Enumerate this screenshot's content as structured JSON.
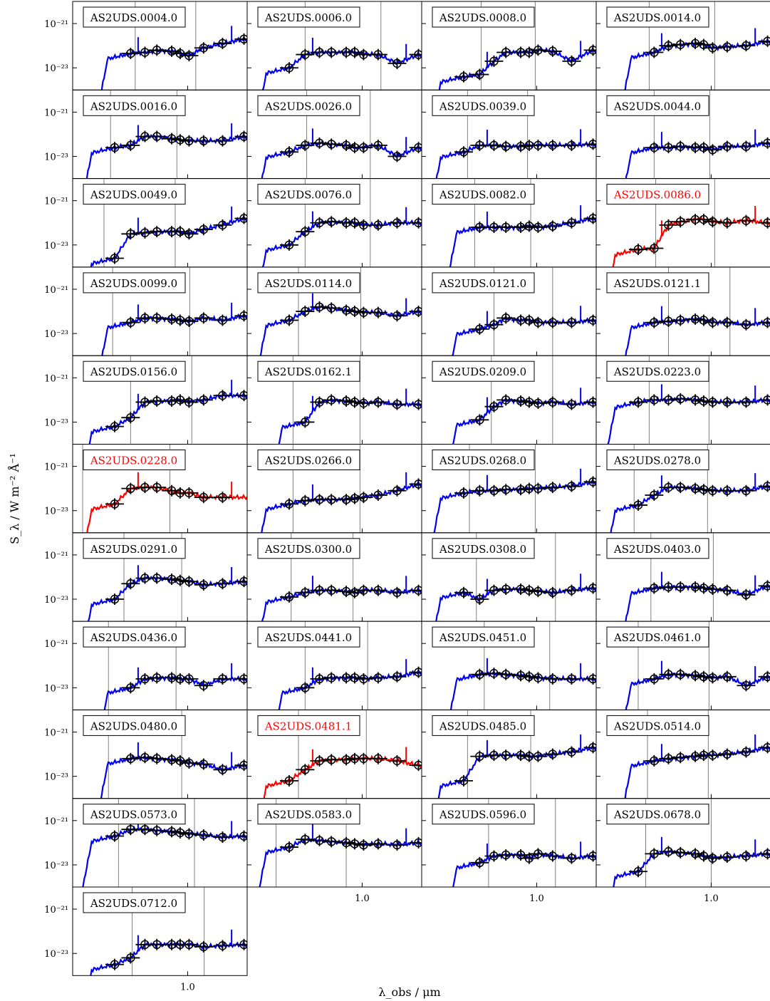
{
  "figure": {
    "ylabel": "S_λ / W m⁻² Å⁻¹",
    "xlabel": "λ_obs / μm"
  },
  "chart_data": {
    "type": "scatter",
    "xscale": "log",
    "yscale": "log",
    "xlim": [
      0.2,
      2.3
    ],
    "ylim": [
      1e-24,
      1e-20
    ],
    "x_ticks": [
      1.0
    ],
    "x_tick_labels": [
      "1.0"
    ],
    "y_ticks": [
      1e-21,
      1e-23
    ],
    "y_tick_labels": [
      "10⁻²¹",
      "10⁻²³"
    ],
    "phot_x": [
      0.36,
      0.45,
      0.55,
      0.65,
      0.8,
      0.9,
      1.02,
      1.25,
      1.63,
      2.2
    ],
    "grid": false,
    "legend": "none",
    "colors": {
      "fit_blue": "#0000ee",
      "fit_red": "#ff0000",
      "points": "#000000",
      "lines": "#808080"
    },
    "panels": [
      {
        "name": "AS2UDS.0004.0",
        "label_color": "black",
        "fit_color": "blue",
        "vlines": [
          0.48,
          1.12
        ],
        "phot": [
          null,
          -22.35,
          -22.3,
          -22.2,
          -22.25,
          -22.35,
          -22.45,
          -22.1,
          -21.9,
          -21.7
        ]
      },
      {
        "name": "AS2UDS.0006.0",
        "label_color": "black",
        "fit_color": "blue",
        "vlines": [
          0.45,
          1.3
        ],
        "phot": [
          -23.0,
          -22.4,
          -22.3,
          -22.3,
          -22.3,
          -22.3,
          -22.4,
          -22.4,
          -22.8,
          -22.4
        ]
      },
      {
        "name": "AS2UDS.0008.0",
        "label_color": "black",
        "fit_color": "blue",
        "vlines": [
          0.46,
          0.98
        ],
        "phot": [
          -23.4,
          -23.3,
          -22.7,
          -22.3,
          -22.3,
          -22.3,
          -22.2,
          -22.25,
          -22.7,
          -22.2
        ]
      },
      {
        "name": "AS2UDS.0014.0",
        "label_color": "black",
        "fit_color": "blue",
        "vlines": [
          0.42,
          1.05
        ],
        "phot": [
          null,
          -22.3,
          -22.0,
          -21.95,
          -21.9,
          -21.95,
          -22.1,
          -22.05,
          -22.0,
          -21.8
        ]
      },
      {
        "name": "AS2UDS.0016.0",
        "label_color": "black",
        "fit_color": "blue",
        "vlines": [
          0.34,
          0.86
        ],
        "phot": [
          -22.6,
          -22.5,
          -22.1,
          -22.1,
          -22.2,
          -22.25,
          -22.3,
          -22.3,
          -22.3,
          -22.1
        ]
      },
      {
        "name": "AS2UDS.0026.0",
        "label_color": "black",
        "fit_color": "blue",
        "vlines": [
          0.46,
          1.12
        ],
        "phot": [
          -22.8,
          -22.5,
          -22.4,
          -22.45,
          -22.5,
          -22.6,
          -22.6,
          -22.5,
          -23.0,
          -22.6
        ]
      },
      {
        "name": "AS2UDS.0039.0",
        "label_color": "black",
        "fit_color": "blue",
        "vlines": [
          0.38,
          0.88
        ],
        "phot": [
          -22.8,
          -22.5,
          -22.5,
          -22.55,
          -22.55,
          -22.5,
          -22.5,
          -22.5,
          -22.5,
          -22.45
        ]
      },
      {
        "name": "AS2UDS.0044.0",
        "label_color": "black",
        "fit_color": "blue",
        "vlines": [
          0.45,
          0.98
        ],
        "phot": [
          null,
          -22.6,
          -22.6,
          -22.55,
          -22.6,
          -22.6,
          -22.7,
          -22.55,
          -22.55,
          -22.4
        ]
      },
      {
        "name": "AS2UDS.0049.0",
        "label_color": "black",
        "fit_color": "blue",
        "vlines": [
          0.31,
          0.84
        ],
        "phot": [
          -23.6,
          -22.5,
          -22.45,
          -22.4,
          -22.4,
          -22.4,
          -22.5,
          -22.3,
          -22.1,
          -21.8
        ]
      },
      {
        "name": "AS2UDS.0076.0",
        "label_color": "black",
        "fit_color": "blue",
        "vlines": [
          0.45,
          1.12
        ],
        "phot": [
          -23.0,
          -22.4,
          -22.0,
          -21.95,
          -22.0,
          -22.0,
          -22.1,
          -22.1,
          -22.0,
          -22.0
        ]
      },
      {
        "name": "AS2UDS.0082.0",
        "label_color": "black",
        "fit_color": "blue",
        "vlines": [
          0.42,
          0.92
        ],
        "phot": [
          null,
          -22.2,
          -22.2,
          -22.2,
          -22.2,
          -22.15,
          -22.2,
          -22.15,
          -22.0,
          -21.8
        ]
      },
      {
        "name": "AS2UDS.0086.0",
        "label_color": "red",
        "fit_color": "red",
        "vlines": [
          0.46,
          1.05
        ],
        "phot": [
          -23.2,
          -23.15,
          -22.1,
          -21.95,
          -21.85,
          -21.85,
          -21.95,
          -22.0,
          -21.9,
          -22.0
        ]
      },
      {
        "name": "AS2UDS.0099.0",
        "label_color": "black",
        "fit_color": "blue",
        "vlines": [
          0.35,
          1.03
        ],
        "phot": [
          null,
          -22.5,
          -22.3,
          -22.3,
          -22.35,
          -22.4,
          -22.45,
          -22.3,
          -22.4,
          -22.2
        ]
      },
      {
        "name": "AS2UDS.0114.0",
        "label_color": "black",
        "fit_color": "blue",
        "vlines": [
          0.41,
          0.98
        ],
        "phot": [
          -22.4,
          -22.0,
          -21.8,
          -21.85,
          -21.95,
          -22.0,
          -22.05,
          -22.05,
          -22.2,
          -22.0
        ]
      },
      {
        "name": "AS2UDS.0121.0",
        "label_color": "black",
        "fit_color": "blue",
        "vlines": [
          0.55,
          1.25
        ],
        "phot": [
          null,
          -22.8,
          -22.6,
          -22.3,
          -22.4,
          -22.4,
          -22.5,
          -22.5,
          -22.5,
          -22.4
        ]
      },
      {
        "name": "AS2UDS.0121.1",
        "label_color": "black",
        "fit_color": "blue",
        "vlines": [
          0.55,
          1.3
        ],
        "phot": [
          null,
          -22.5,
          -22.45,
          -22.4,
          -22.35,
          -22.4,
          -22.5,
          -22.5,
          -22.6,
          -22.5
        ]
      },
      {
        "name": "AS2UDS.0156.0",
        "label_color": "black",
        "fit_color": "blue",
        "vlines": [
          0.45,
          1.06
        ],
        "phot": [
          -23.2,
          -22.8,
          -22.1,
          -22.05,
          -22.05,
          -22.0,
          -22.1,
          -22.0,
          -21.8,
          -21.8
        ]
      },
      {
        "name": "AS2UDS.0162.1",
        "label_color": "black",
        "fit_color": "blue",
        "vlines": [
          0.38,
          0.97
        ],
        "phot": [
          null,
          -23.0,
          -22.1,
          -22.0,
          -22.05,
          -22.1,
          -22.15,
          -22.1,
          -22.2,
          -22.2
        ]
      },
      {
        "name": "AS2UDS.0209.0",
        "label_color": "black",
        "fit_color": "blue",
        "vlines": [
          0.53,
          1.25
        ],
        "phot": [
          null,
          -22.9,
          -22.3,
          -22.0,
          -22.05,
          -22.1,
          -22.15,
          -22.1,
          -22.2,
          -22.1
        ]
      },
      {
        "name": "AS2UDS.0223.0",
        "label_color": "black",
        "fit_color": "blue",
        "vlines": [
          0.42,
          0.97
        ],
        "phot": [
          -22.1,
          -22.0,
          -22.0,
          -21.95,
          -22.0,
          -22.05,
          -22.1,
          -22.1,
          -22.1,
          -22.0
        ]
      },
      {
        "name": "AS2UDS.0228.0",
        "label_color": "red",
        "fit_color": "red",
        "vlines": [
          0.23,
          0.78
        ],
        "phot": [
          -22.7,
          -22.0,
          -21.95,
          -21.95,
          -22.1,
          -22.2,
          -22.2,
          -22.4,
          -22.4,
          null
        ]
      },
      {
        "name": "AS2UDS.0266.0",
        "label_color": "black",
        "fit_color": "blue",
        "vlines": [
          0.38,
          0.97
        ],
        "phot": [
          -22.7,
          -22.55,
          -22.5,
          -22.5,
          -22.5,
          -22.45,
          -22.4,
          -22.3,
          -22.1,
          -21.8
        ]
      },
      {
        "name": "AS2UDS.0268.0",
        "label_color": "black",
        "fit_color": "blue",
        "vlines": [
          0.39,
          0.98
        ],
        "phot": [
          -22.2,
          -22.1,
          -22.1,
          -22.05,
          -22.05,
          -22.0,
          -22.0,
          -21.95,
          -21.9,
          -21.7
        ]
      },
      {
        "name": "AS2UDS.0278.0",
        "label_color": "black",
        "fit_color": "blue",
        "vlines": [
          0.34,
          0.95
        ],
        "phot": [
          -22.75,
          -22.3,
          -21.95,
          -21.95,
          -22.0,
          -22.05,
          -22.1,
          -22.1,
          -22.1,
          -21.9
        ]
      },
      {
        "name": "AS2UDS.0291.0",
        "label_color": "black",
        "fit_color": "blue",
        "vlines": [
          0.41,
          0.92
        ],
        "phot": [
          -23.0,
          -22.3,
          -22.05,
          -22.05,
          -22.1,
          -22.15,
          -22.2,
          -22.35,
          -22.3,
          -22.2
        ]
      },
      {
        "name": "AS2UDS.0300.0",
        "label_color": "black",
        "fit_color": "blue",
        "vlines": [
          0.37,
          0.88
        ],
        "phot": [
          -22.9,
          -22.7,
          -22.6,
          -22.6,
          -22.65,
          -22.7,
          -22.6,
          -22.6,
          -22.7,
          -22.6
        ]
      },
      {
        "name": "AS2UDS.0308.0",
        "label_color": "black",
        "fit_color": "blue",
        "vlines": [
          0.43,
          1.3
        ],
        "phot": [
          -22.7,
          -23.0,
          -22.6,
          -22.55,
          -22.55,
          -22.6,
          -22.65,
          -22.7,
          -22.6,
          -22.5
        ]
      },
      {
        "name": "AS2UDS.0403.0",
        "label_color": "black",
        "fit_color": "blue",
        "vlines": [
          0.43,
          1.03
        ],
        "phot": [
          null,
          -22.5,
          -22.45,
          -22.45,
          -22.45,
          -22.5,
          -22.55,
          -22.6,
          -22.8,
          -22.4
        ]
      },
      {
        "name": "AS2UDS.0436.0",
        "label_color": "black",
        "fit_color": "blue",
        "vlines": [
          0.33,
          0.85
        ],
        "phot": [
          null,
          -23.0,
          -22.6,
          -22.55,
          -22.55,
          -22.6,
          -22.6,
          -22.9,
          -22.6,
          -22.6
        ]
      },
      {
        "name": "AS2UDS.0441.0",
        "label_color": "black",
        "fit_color": "blue",
        "vlines": [
          0.45,
          1.08
        ],
        "phot": [
          null,
          -23.0,
          -22.6,
          -22.55,
          -22.55,
          -22.55,
          -22.6,
          -22.55,
          -22.5,
          -22.3
        ]
      },
      {
        "name": "AS2UDS.0451.0",
        "label_color": "black",
        "fit_color": "blue",
        "vlines": [
          0.48,
          1.2
        ],
        "phot": [
          null,
          -22.4,
          -22.35,
          -22.4,
          -22.45,
          -22.5,
          -22.55,
          -22.6,
          -22.6,
          -22.6
        ]
      },
      {
        "name": "AS2UDS.0461.0",
        "label_color": "black",
        "fit_color": "blue",
        "vlines": [
          0.36,
          0.97
        ],
        "phot": [
          null,
          -22.6,
          -22.4,
          -22.4,
          -22.45,
          -22.5,
          -22.55,
          -22.5,
          -22.9,
          -22.5
        ]
      },
      {
        "name": "AS2UDS.0480.0",
        "label_color": "black",
        "fit_color": "blue",
        "vlines": [
          0.33,
          0.92
        ],
        "phot": [
          null,
          -22.2,
          -22.15,
          -22.2,
          -22.25,
          -22.3,
          -22.4,
          -22.45,
          -22.7,
          -22.5
        ]
      },
      {
        "name": "AS2UDS.0481.1",
        "label_color": "red",
        "fit_color": "red",
        "vlines": [
          0.41,
          1.06
        ],
        "phot": [
          -23.2,
          -22.7,
          -22.3,
          -22.25,
          -22.25,
          -22.2,
          -22.2,
          -22.2,
          -22.3,
          -22.5
        ]
      },
      {
        "name": "AS2UDS.0485.0",
        "label_color": "black",
        "fit_color": "blue",
        "vlines": [
          0.38,
          0.92
        ],
        "phot": [
          -23.2,
          -22.1,
          -22.05,
          -22.05,
          -22.05,
          -22.1,
          -22.1,
          -22.0,
          -21.9,
          -21.7
        ]
      },
      {
        "name": "AS2UDS.0514.0",
        "label_color": "black",
        "fit_color": "blue",
        "vlines": [
          0.41,
          0.96
        ],
        "phot": [
          null,
          -22.3,
          -22.2,
          -22.15,
          -22.1,
          -22.05,
          -22.05,
          -22.0,
          -21.9,
          -21.7
        ]
      },
      {
        "name": "AS2UDS.0573.0",
        "label_color": "black",
        "fit_color": "blue",
        "vlines": [
          0.38,
          1.1
        ],
        "phot": [
          -21.7,
          -21.4,
          -21.4,
          -21.45,
          -21.5,
          -21.55,
          -21.6,
          -21.65,
          -21.75,
          -21.7
        ]
      },
      {
        "name": "AS2UDS.0583.0",
        "label_color": "black",
        "fit_color": "blue",
        "vlines": [
          0.3,
          0.8
        ],
        "phot": [
          -22.2,
          -21.85,
          -21.9,
          -21.95,
          -22.0,
          -22.05,
          -22.1,
          -22.05,
          -22.1,
          -22.0
        ]
      },
      {
        "name": "AS2UDS.0596.0",
        "label_color": "black",
        "fit_color": "blue",
        "vlines": [
          0.51,
          1.3
        ],
        "phot": [
          null,
          -22.9,
          -22.6,
          -22.55,
          -22.55,
          -22.7,
          -22.5,
          -22.6,
          -22.7,
          -22.6
        ]
      },
      {
        "name": "AS2UDS.0678.0",
        "label_color": "black",
        "fit_color": "blue",
        "vlines": [
          0.4,
          1.0
        ],
        "phot": [
          -23.3,
          -22.5,
          -22.4,
          -22.45,
          -22.5,
          -22.6,
          -22.7,
          -22.65,
          -22.6,
          -22.5
        ]
      },
      {
        "name": "AS2UDS.0712.0",
        "label_color": "black",
        "fit_color": "blue",
        "vlines": [
          0.46,
          1.26
        ],
        "phot": [
          -23.5,
          -23.2,
          -22.6,
          -22.6,
          -22.6,
          -22.6,
          -22.6,
          -22.7,
          -22.65,
          -22.6
        ]
      }
    ]
  }
}
